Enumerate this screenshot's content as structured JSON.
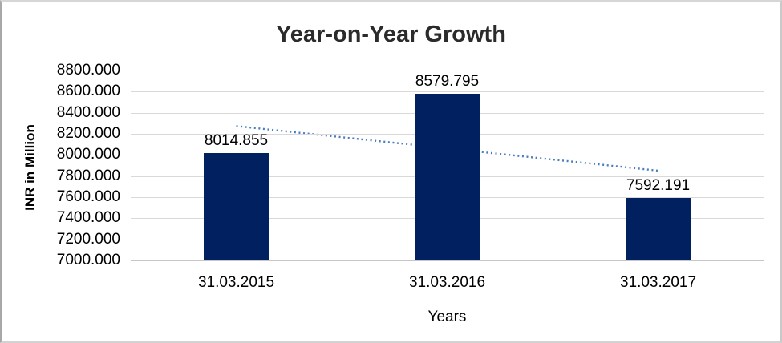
{
  "chart_data": {
    "type": "bar",
    "title": "Year-on-Year Growth",
    "xlabel": "Years",
    "ylabel": "INR in Million",
    "categories": [
      "31.03.2015",
      "31.03.2016",
      "31.03.2017"
    ],
    "values": [
      8014.855,
      8579.795,
      7592.191
    ],
    "data_labels": [
      "8014.855",
      "8579.795",
      "7592.191"
    ],
    "y_ticks": [
      "8800.000",
      "8600.000",
      "8400.000",
      "8200.000",
      "8000.000",
      "7800.000",
      "7600.000",
      "7400.000",
      "7200.000",
      "7000.000"
    ],
    "ylim": [
      7000,
      8800
    ],
    "grid": true,
    "legend": false,
    "bar_color": "#002060",
    "gridline_color": "#d9d9d9",
    "trendline": {
      "type": "linear",
      "style": "dotted",
      "color": "#4a7dbe"
    }
  }
}
